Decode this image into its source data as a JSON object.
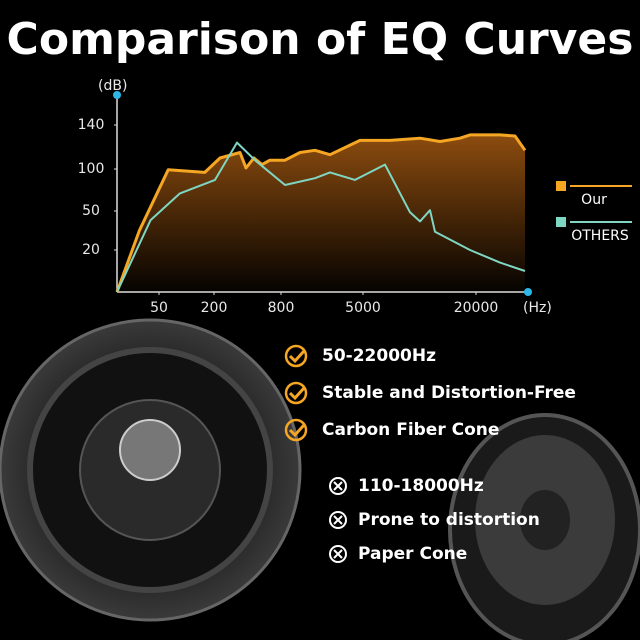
{
  "chart_data": {
    "type": "line",
    "title": "Comparison of EQ Curves",
    "y_label": "(dB)",
    "x_label": "(Hz)",
    "xlim": [
      20,
      40000
    ],
    "ylim": [
      0,
      170
    ],
    "xticks": [
      50,
      200,
      800,
      5000,
      20000
    ],
    "yticks": [
      20,
      50,
      100,
      140
    ],
    "legend_position": "right",
    "series": [
      {
        "name": "Our",
        "color": "#f5a623",
        "x": [
          20,
          36,
          75,
          175,
          254,
          433,
          487,
          558,
          630,
          701,
          1005,
          1773,
          2541,
          3310,
          4846,
          8584,
          12566,
          15221,
          17876,
          19204,
          29231,
          35000,
          38846
        ],
        "values": [
          0,
          35,
          99,
          96,
          110,
          115,
          101,
          110,
          104,
          108,
          108,
          115,
          117,
          113,
          126,
          126,
          128,
          125,
          128,
          131,
          131,
          130,
          117
        ]
      },
      {
        "name": "OTHERS",
        "color": "#7fd6c2",
        "x": [
          20,
          44,
          107,
          209,
          406,
          567,
          1005,
          2541,
          3310,
          4590,
          7920,
          11239,
          12566,
          13894,
          14558,
          19204,
          29231,
          38846
        ],
        "values": [
          0,
          43,
          71,
          87,
          124,
          108,
          81,
          89,
          96,
          87,
          104,
          49,
          42,
          51,
          34,
          20,
          14,
          10
        ]
      }
    ]
  },
  "features_ours": [
    "50-22000Hz",
    "Stable and Distortion-Free",
    "Carbon Fiber Cone"
  ],
  "features_others": [
    "110-18000Hz",
    "Prone to distortion",
    "Paper Cone"
  ]
}
